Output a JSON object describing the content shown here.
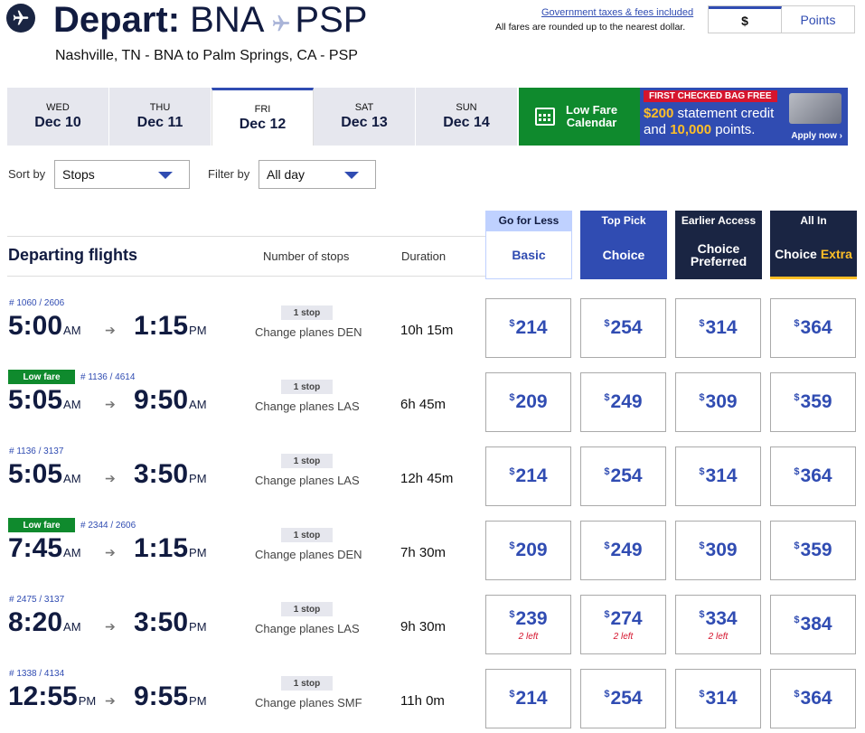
{
  "header": {
    "title_prefix": "Depart:",
    "origin": "BNA",
    "destination": "PSP",
    "subtitle": "Nashville, TN - BNA to Palm Springs, CA - PSP",
    "taxes_link": "Government taxes & fees included",
    "fares_note": "All fares are rounded up to the nearest dollar.",
    "currency_toggle": {
      "usd": "$",
      "points": "Points"
    }
  },
  "dates": [
    {
      "dow": "WED",
      "day": "Dec 10",
      "active": false
    },
    {
      "dow": "THU",
      "day": "Dec 11",
      "active": false
    },
    {
      "dow": "FRI",
      "day": "Dec 12",
      "active": true
    },
    {
      "dow": "SAT",
      "day": "Dec 13",
      "active": false
    },
    {
      "dow": "SUN",
      "day": "Dec 14",
      "active": false
    }
  ],
  "low_fare_calendar": {
    "line1": "Low Fare",
    "line2": "Calendar"
  },
  "promo": {
    "tag": "FIRST CHECKED BAG FREE",
    "line1_amount": "$200",
    "line1_rest": " statement credit",
    "line2_pre": "and ",
    "line2_amount": "10,000",
    "line2_rest": " points.",
    "cta": "Apply now"
  },
  "controls": {
    "sort_label": "Sort by",
    "sort_value": "Stops",
    "filter_label": "Filter by",
    "filter_value": "All day"
  },
  "columns": {
    "title": "Departing flights",
    "stops": "Number of stops",
    "duration": "Duration"
  },
  "fare_classes": [
    {
      "top": "Go for Less",
      "name": "Basic",
      "name2": ""
    },
    {
      "top": "Top Pick",
      "name": "Choice",
      "name2": ""
    },
    {
      "top": "Earlier Access",
      "name": "Choice",
      "name2": "Preferred"
    },
    {
      "top": "All In",
      "name": "Choice",
      "name2": "Extra"
    }
  ],
  "flights": [
    {
      "low_fare": "",
      "flight_no": "# 1060 / 2606",
      "dep": "5:00",
      "dep_ampm": "AM",
      "arr": "1:15",
      "arr_ampm": "PM",
      "stops": "1 stop",
      "change": "Change planes DEN",
      "duration": "10h 15m",
      "prices": [
        {
          "v": "214",
          "left": ""
        },
        {
          "v": "254",
          "left": ""
        },
        {
          "v": "314",
          "left": ""
        },
        {
          "v": "364",
          "left": ""
        }
      ]
    },
    {
      "low_fare": "Low fare",
      "flight_no": "# 1136 / 4614",
      "dep": "5:05",
      "dep_ampm": "AM",
      "arr": "9:50",
      "arr_ampm": "AM",
      "stops": "1 stop",
      "change": "Change planes LAS",
      "duration": "6h 45m",
      "prices": [
        {
          "v": "209",
          "left": ""
        },
        {
          "v": "249",
          "left": ""
        },
        {
          "v": "309",
          "left": ""
        },
        {
          "v": "359",
          "left": ""
        }
      ]
    },
    {
      "low_fare": "",
      "flight_no": "# 1136 / 3137",
      "dep": "5:05",
      "dep_ampm": "AM",
      "arr": "3:50",
      "arr_ampm": "PM",
      "stops": "1 stop",
      "change": "Change planes LAS",
      "duration": "12h 45m",
      "prices": [
        {
          "v": "214",
          "left": ""
        },
        {
          "v": "254",
          "left": ""
        },
        {
          "v": "314",
          "left": ""
        },
        {
          "v": "364",
          "left": ""
        }
      ]
    },
    {
      "low_fare": "Low fare",
      "flight_no": "# 2344 / 2606",
      "dep": "7:45",
      "dep_ampm": "AM",
      "arr": "1:15",
      "arr_ampm": "PM",
      "stops": "1 stop",
      "change": "Change planes DEN",
      "duration": "7h 30m",
      "prices": [
        {
          "v": "209",
          "left": ""
        },
        {
          "v": "249",
          "left": ""
        },
        {
          "v": "309",
          "left": ""
        },
        {
          "v": "359",
          "left": ""
        }
      ]
    },
    {
      "low_fare": "",
      "flight_no": "# 2475 / 3137",
      "dep": "8:20",
      "dep_ampm": "AM",
      "arr": "3:50",
      "arr_ampm": "PM",
      "stops": "1 stop",
      "change": "Change planes LAS",
      "duration": "9h 30m",
      "prices": [
        {
          "v": "239",
          "left": "2 left"
        },
        {
          "v": "274",
          "left": "2 left"
        },
        {
          "v": "334",
          "left": "2 left"
        },
        {
          "v": "384",
          "left": ""
        }
      ]
    },
    {
      "low_fare": "",
      "flight_no": "# 1338 / 4134",
      "dep": "12:55",
      "dep_ampm": "PM",
      "arr": "9:55",
      "arr_ampm": "PM",
      "stops": "1 stop",
      "change": "Change planes SMF",
      "duration": "11h 0m",
      "prices": [
        {
          "v": "214",
          "left": ""
        },
        {
          "v": "254",
          "left": ""
        },
        {
          "v": "314",
          "left": ""
        },
        {
          "v": "364",
          "left": ""
        }
      ]
    }
  ]
}
